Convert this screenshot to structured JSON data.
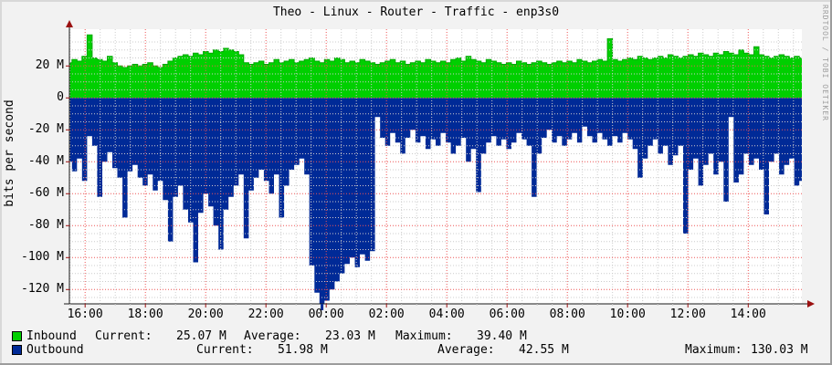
{
  "title": "Theo - Linux - Router - Traffic - enp3s0",
  "watermark": "RRDTOOL / TOBI OETIKER",
  "colors": {
    "background": "#f2f2f2",
    "canvas": "#ffffff",
    "border_light": "#d8d8d8",
    "border_dark": "#9c9c9c",
    "inbound": "#00cf00",
    "inbound_line": "#00a800",
    "outbound": "#002a97",
    "major_grid": "#ee5555",
    "minor_grid": "#cccccc",
    "axis": "#1a1a1a",
    "arrow": "#9b1010",
    "text": "#000000"
  },
  "legend": {
    "rows": [
      {
        "label": "Inbound",
        "current_label": "Current:",
        "current": "25.07 M",
        "average_label": "Average:",
        "average": "23.03 M",
        "maximum_label": "Maximum:",
        "maximum": "39.40 M"
      },
      {
        "label": "Outbound",
        "current_label": "Current:",
        "current": "51.98 M",
        "average_label": "Average:",
        "average": "42.55 M",
        "maximum_label": "Maximum:",
        "maximum": "130.03 M"
      }
    ]
  },
  "chart_data": {
    "type": "area",
    "title": "Theo - Linux - Router - Traffic - enp3s0",
    "ylabel": "bits per second",
    "unit": "Mbit/s",
    "ylim": [
      -129,
      43
    ],
    "time_start_hours": 15.48,
    "time_end_hours": 39.78,
    "grid": {
      "x_major_step_hours": 2,
      "x_minor_step_hours": 0.5,
      "y_major_step": 20,
      "y_minor_step": 5
    },
    "y_ticks": [
      {
        "label": "20 M",
        "value": 20
      },
      {
        "label": "0",
        "value": 0
      },
      {
        "label": "-20 M",
        "value": -20
      },
      {
        "label": "-40 M",
        "value": -40
      },
      {
        "label": "-60 M",
        "value": -60
      },
      {
        "label": "-80 M",
        "value": -80
      },
      {
        "label": "-100 M",
        "value": -100
      },
      {
        "label": "-120 M",
        "value": -120
      }
    ],
    "x_ticks": [
      {
        "label": "16:00",
        "hour": 16
      },
      {
        "label": "18:00",
        "hour": 18
      },
      {
        "label": "20:00",
        "hour": 20
      },
      {
        "label": "22:00",
        "hour": 22
      },
      {
        "label": "00:00",
        "hour": 24
      },
      {
        "label": "02:00",
        "hour": 26
      },
      {
        "label": "04:00",
        "hour": 28
      },
      {
        "label": "06:00",
        "hour": 30
      },
      {
        "label": "08:00",
        "hour": 32
      },
      {
        "label": "10:00",
        "hour": 34
      },
      {
        "label": "12:00",
        "hour": 36
      },
      {
        "label": "14:00",
        "hour": 38
      }
    ],
    "series": [
      {
        "name": "Inbound",
        "direction": "positive",
        "stats": {
          "current": 25.07,
          "average": 23.03,
          "maximum": 39.4
        },
        "values": [
          22,
          24,
          23,
          26,
          39.4,
          25,
          24,
          23,
          26,
          22,
          20,
          19,
          20,
          21,
          20,
          21,
          22,
          20,
          19,
          21,
          23,
          25,
          26,
          27,
          26,
          28,
          27,
          29,
          28,
          30,
          29,
          31,
          30,
          29,
          27,
          22,
          21,
          22,
          23,
          21,
          22,
          24,
          22,
          23,
          24,
          22,
          23,
          24,
          25,
          23,
          22,
          24,
          23,
          25,
          24,
          22,
          23,
          22,
          24,
          23,
          22,
          21,
          22,
          23,
          24,
          22,
          23,
          21,
          22,
          23,
          22,
          24,
          23,
          22,
          23,
          22,
          24,
          25,
          23,
          26,
          24,
          23,
          22,
          24,
          23,
          22,
          21,
          22,
          21,
          23,
          22,
          21,
          22,
          23,
          22,
          21,
          22,
          23,
          22,
          23,
          22,
          24,
          23,
          22,
          23,
          24,
          23,
          37,
          24,
          23,
          24,
          25,
          24,
          26,
          25,
          24,
          25,
          26,
          25,
          27,
          26,
          25,
          26,
          27,
          26,
          28,
          27,
          26,
          28,
          27,
          29,
          28,
          27,
          30,
          28,
          27,
          32,
          27,
          26,
          25,
          26,
          27,
          26,
          25,
          26,
          25.07
        ]
      },
      {
        "name": "Outbound",
        "direction": "negative",
        "stats": {
          "current": 51.98,
          "average": 42.55,
          "maximum": 130.03
        },
        "values": [
          -40,
          -46,
          -38,
          -52,
          -24,
          -30,
          -62,
          -40,
          -34,
          -44,
          -50,
          -75,
          -46,
          -42,
          -50,
          -55,
          -48,
          -58,
          -52,
          -64,
          -90,
          -62,
          -55,
          -70,
          -78,
          -103,
          -72,
          -60,
          -68,
          -80,
          -95,
          -70,
          -62,
          -55,
          -48,
          -88,
          -58,
          -50,
          -45,
          -52,
          -60,
          -48,
          -75,
          -55,
          -45,
          -42,
          -38,
          -48,
          -105,
          -122,
          -130.03,
          -127,
          -120,
          -115,
          -110,
          -104,
          -100,
          -106,
          -98,
          -102,
          -96,
          -12,
          -25,
          -30,
          -22,
          -28,
          -35,
          -25,
          -20,
          -28,
          -24,
          -32,
          -26,
          -30,
          -22,
          -28,
          -35,
          -30,
          -25,
          -40,
          -32,
          -59,
          -35,
          -28,
          -24,
          -30,
          -26,
          -32,
          -28,
          -22,
          -26,
          -30,
          -62,
          -35,
          -25,
          -20,
          -28,
          -24,
          -30,
          -26,
          -22,
          -28,
          -18,
          -24,
          -28,
          -22,
          -26,
          -30,
          -24,
          -28,
          -22,
          -26,
          -32,
          -50,
          -38,
          -30,
          -26,
          -35,
          -30,
          -42,
          -36,
          -30,
          -85,
          -45,
          -38,
          -55,
          -42,
          -35,
          -48,
          -40,
          -65,
          -12,
          -53,
          -48,
          -35,
          -42,
          -38,
          -45,
          -73,
          -40,
          -35,
          -48,
          -42,
          -38,
          -55,
          -51.98
        ]
      }
    ]
  }
}
